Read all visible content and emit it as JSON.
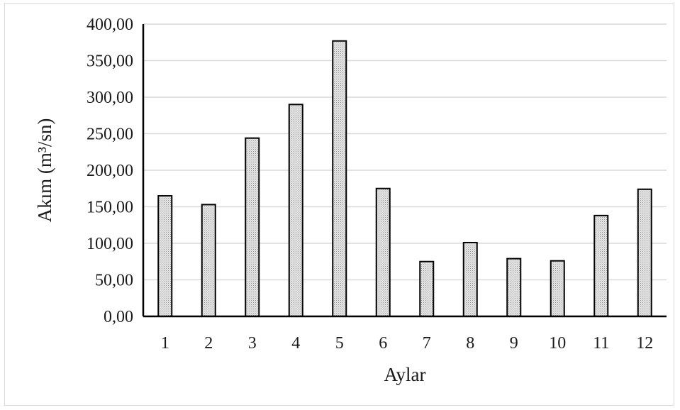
{
  "chart_data": {
    "type": "bar",
    "xlabel": "Aylar",
    "ylabel": "Akım (m³/sn)",
    "categories": [
      "1",
      "2",
      "3",
      "4",
      "5",
      "6",
      "7",
      "8",
      "9",
      "10",
      "11",
      "12"
    ],
    "values": [
      165,
      153,
      244,
      290,
      377,
      175,
      75,
      101,
      79,
      76,
      138,
      174
    ],
    "ylim": [
      0,
      400
    ],
    "yticks": [
      "0,00",
      "50,00",
      "100,00",
      "150,00",
      "200,00",
      "250,00",
      "300,00",
      "350,00",
      "400,00"
    ],
    "grid": true,
    "legend": "none",
    "colors": {
      "bar_fill": "#d0d0d0",
      "bar_stroke": "#000000",
      "grid": "#d9d9d9",
      "axis": "#000000"
    }
  }
}
